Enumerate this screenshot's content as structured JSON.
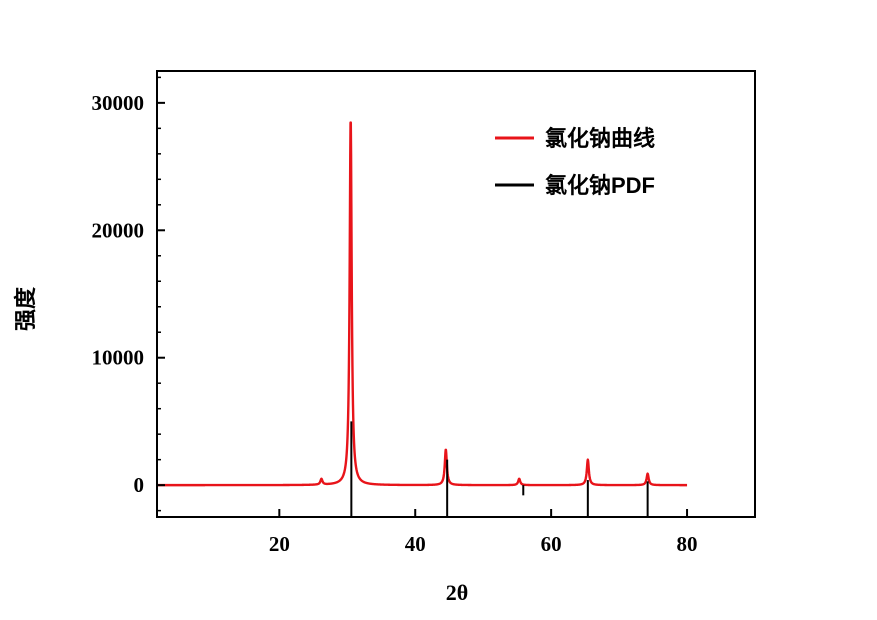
{
  "chart_data": {
    "type": "line",
    "xlabel": "2θ",
    "ylabel": "强度",
    "xlim": [
      2,
      90
    ],
    "ylim": [
      -2500,
      32500
    ],
    "xticks": [
      20,
      40,
      60,
      80
    ],
    "xtick_labels": [
      "20",
      "40",
      "60",
      "80"
    ],
    "yticks": [
      0,
      10000,
      20000,
      30000
    ],
    "ytick_labels": [
      "0",
      "10000",
      "20000",
      "30000"
    ],
    "grid": false,
    "legend_position": "top-right",
    "series": [
      {
        "name": "氯化钠曲线",
        "style": "line",
        "color": "#e8141a",
        "baseline": 0,
        "x_start": 2,
        "x_end": 80,
        "peaks": [
          {
            "x": 26.2,
            "y": 450
          },
          {
            "x": 30.5,
            "y": 28800
          },
          {
            "x": 44.5,
            "y": 2800
          },
          {
            "x": 55.3,
            "y": 500
          },
          {
            "x": 65.4,
            "y": 2000
          },
          {
            "x": 74.2,
            "y": 900
          }
        ]
      },
      {
        "name": "氯化钠PDF",
        "style": "sticks",
        "color": "#000000",
        "sticks": [
          {
            "x": 30.6,
            "y": 5000
          },
          {
            "x": 44.7,
            "y": 2000
          },
          {
            "x": 55.9,
            "y": -800
          },
          {
            "x": 65.4,
            "y": 400
          },
          {
            "x": 74.2,
            "y": 300
          }
        ]
      }
    ]
  }
}
